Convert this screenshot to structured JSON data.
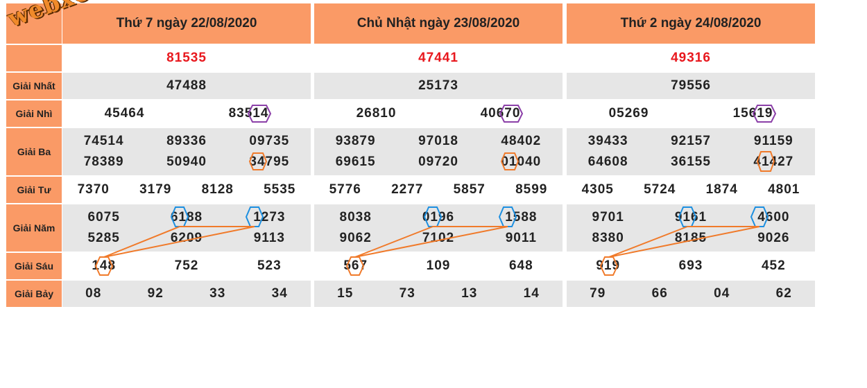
{
  "watermark": "webxoso.net",
  "labels": [
    "Giải Nhất",
    "Giải Nhì",
    "Giải Ba",
    "Giải Tư",
    "Giải Năm",
    "Giải Sáu",
    "Giải Bảy"
  ],
  "days": [
    {
      "title": "Thứ 7 ngày 22/08/2020",
      "special": "81535",
      "g1": "47488",
      "g2": [
        "45464",
        "83514"
      ],
      "g3": [
        "74514",
        "89336",
        "09735",
        "78389",
        "50940",
        "34795"
      ],
      "g4": [
        "7370",
        "3179",
        "8128",
        "5535"
      ],
      "g5": [
        "6075",
        "6188",
        "1273",
        "5285",
        "6209",
        "9113"
      ],
      "g6": [
        "148",
        "752",
        "523"
      ],
      "g7": [
        "08",
        "92",
        "33",
        "34"
      ]
    },
    {
      "title": "Chủ Nhật ngày 23/08/2020",
      "special": "47441",
      "g1": "25173",
      "g2": [
        "26810",
        "40670"
      ],
      "g3": [
        "93879",
        "97018",
        "48402",
        "69615",
        "09720",
        "01040"
      ],
      "g4": [
        "5776",
        "2277",
        "5857",
        "8599"
      ],
      "g5": [
        "8038",
        "0196",
        "1588",
        "9062",
        "7102",
        "9011"
      ],
      "g6": [
        "567",
        "109",
        "648"
      ],
      "g7": [
        "15",
        "73",
        "13",
        "14"
      ]
    },
    {
      "title": "Thứ 2 ngày 24/08/2020",
      "special": "49316",
      "g1": "79556",
      "g2": [
        "05269",
        "15619"
      ],
      "g3": [
        "39433",
        "92157",
        "91159",
        "64608",
        "36155",
        "41427"
      ],
      "g4": [
        "4305",
        "5724",
        "1874",
        "4801"
      ],
      "g5": [
        "9701",
        "9161",
        "4600",
        "8380",
        "8185",
        "9026"
      ],
      "g6": [
        "919",
        "693",
        "452"
      ],
      "g7": [
        "79",
        "66",
        "04",
        "62"
      ]
    }
  ],
  "colors": {
    "header": "#fa9a66",
    "special": "#e8181e",
    "stripe": "#e6e6e6",
    "purple_marker": "#8b3fa8",
    "orange_marker": "#f07a2a",
    "blue_marker": "#1c8fe0",
    "link_line": "#f07a2a"
  }
}
